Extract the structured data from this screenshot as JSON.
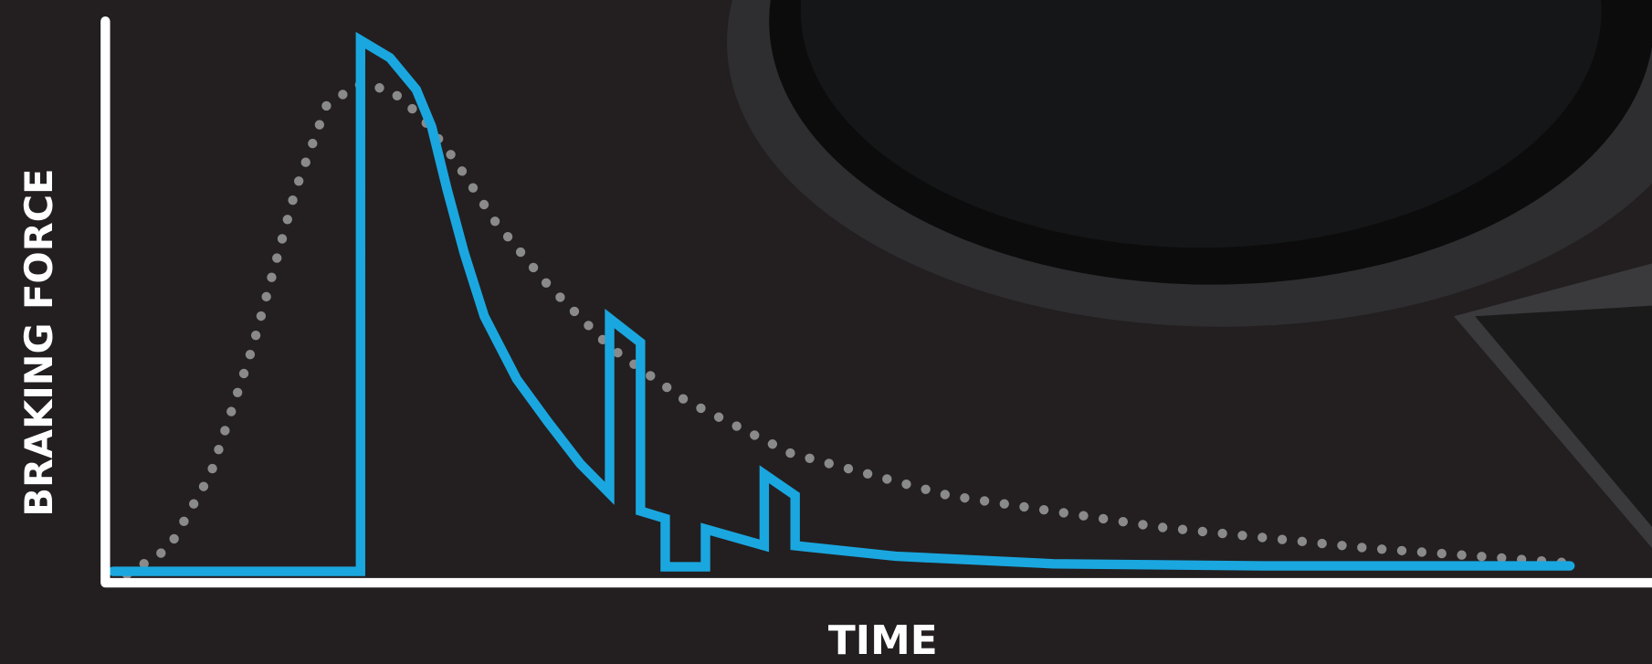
{
  "chart_data": {
    "type": "line",
    "xlabel": "TIME",
    "ylabel": "BRAKING FORCE",
    "xlim": [
      0,
      100
    ],
    "ylim": [
      0,
      110
    ],
    "axis_color": "#ffffff",
    "series": [
      {
        "color": "#8a8a8a",
        "style": "dotted",
        "x": [
          1.4,
          4.1,
          6.8,
          9.5,
          12.3,
          14.3,
          16.3,
          18.4,
          20.4,
          22.5,
          25.2,
          28.6,
          32.7,
          37.5,
          44.3,
          54.5,
          68.1,
          81.7,
          95.4
        ],
        "values": [
          0,
          5.2,
          19.9,
          45.0,
          76.5,
          93.2,
          97.4,
          96.4,
          91.1,
          82.8,
          70.2,
          57.6,
          45.0,
          34.6,
          24.1,
          15.7,
          9.4,
          5.2,
          2.1
        ]
      },
      {
        "color": "#1aa7e0",
        "style": "solid",
        "x": [
          0.5,
          16.5,
          16.5,
          18.4,
          20.1,
          21.1,
          22.1,
          23.2,
          24.5,
          26.6,
          28.6,
          30.7,
          32.6,
          32.6,
          34.6,
          34.6,
          36.2,
          36.2,
          38.8,
          38.8,
          42.6,
          42.6,
          44.6,
          44.6,
          51.1,
          61.3,
          74.9,
          94.7
        ],
        "values": [
          0.6,
          0.6,
          106.2,
          102.7,
          96.4,
          89.0,
          76.5,
          63.9,
          51.3,
          38.8,
          30.4,
          22.0,
          16.1,
          50.9,
          46.1,
          12.6,
          11.1,
          1.5,
          1.5,
          9.0,
          5.7,
          19.9,
          15.7,
          5.7,
          3.6,
          2.1,
          1.7,
          1.7
        ]
      }
    ]
  }
}
